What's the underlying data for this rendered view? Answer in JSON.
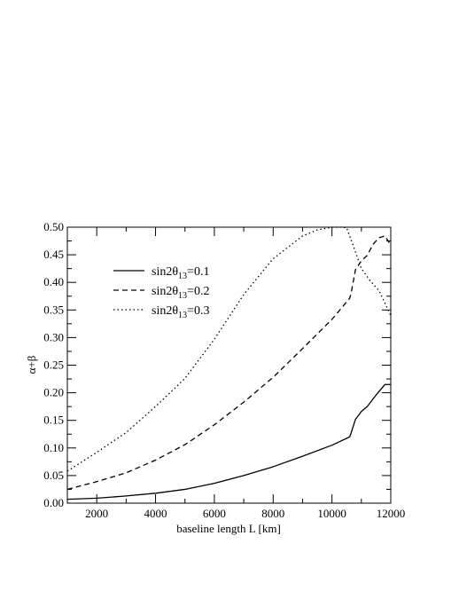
{
  "chart_data": {
    "type": "line",
    "title": "",
    "xlabel": "baseline length L [km]",
    "ylabel": "α+β",
    "xlim": [
      1000,
      12000
    ],
    "ylim": [
      0,
      0.5
    ],
    "xticks": [
      2000,
      4000,
      6000,
      8000,
      10000,
      12000
    ],
    "yticks": [
      0.0,
      0.05,
      0.1,
      0.15,
      0.2,
      0.25,
      0.3,
      0.35,
      0.4,
      0.45,
      0.5
    ],
    "ytick_labels": [
      "0.00",
      "0.05",
      "0.10",
      "0.15",
      "0.20",
      "0.25",
      "0.30",
      "0.35",
      "0.40",
      "0.45",
      "0.50"
    ],
    "grid": false,
    "legend_position": "top-left",
    "series": [
      {
        "name_main": "sin2θ",
        "name_sub": "13",
        "name_tail": "=0.1",
        "style": "solid",
        "x": [
          1000,
          2000,
          3000,
          4000,
          5000,
          6000,
          7000,
          8000,
          9000,
          10000,
          10600,
          10650,
          10800,
          11000,
          11200,
          11500,
          11800,
          12000
        ],
        "y": [
          0.007,
          0.009,
          0.013,
          0.018,
          0.025,
          0.036,
          0.05,
          0.066,
          0.085,
          0.105,
          0.12,
          0.127,
          0.152,
          0.166,
          0.175,
          0.196,
          0.215,
          0.215
        ]
      },
      {
        "name_main": "sin2θ",
        "name_sub": "13",
        "name_tail": "=0.2",
        "style": "dashed",
        "x": [
          1000,
          2000,
          3000,
          4000,
          5000,
          6000,
          7000,
          8000,
          9000,
          10000,
          10600,
          10650,
          10800,
          11000,
          11200,
          11400,
          11600,
          11800,
          12000
        ],
        "y": [
          0.025,
          0.039,
          0.055,
          0.078,
          0.106,
          0.142,
          0.183,
          0.228,
          0.28,
          0.333,
          0.371,
          0.38,
          0.423,
          0.439,
          0.449,
          0.469,
          0.481,
          0.484,
          0.468
        ]
      },
      {
        "name_main": "sin2θ",
        "name_sub": "13",
        "name_tail": "=0.3",
        "style": "dotted",
        "x": [
          1000,
          2000,
          3000,
          4000,
          5000,
          6000,
          7000,
          8000,
          9000,
          9500,
          10000,
          10300,
          10500,
          10700,
          11000,
          11300,
          11600,
          12000
        ],
        "y": [
          0.058,
          0.092,
          0.128,
          0.175,
          0.226,
          0.297,
          0.378,
          0.443,
          0.484,
          0.495,
          0.5,
          0.5,
          0.499,
          0.47,
          0.425,
          0.403,
          0.385,
          0.34
        ]
      }
    ]
  }
}
